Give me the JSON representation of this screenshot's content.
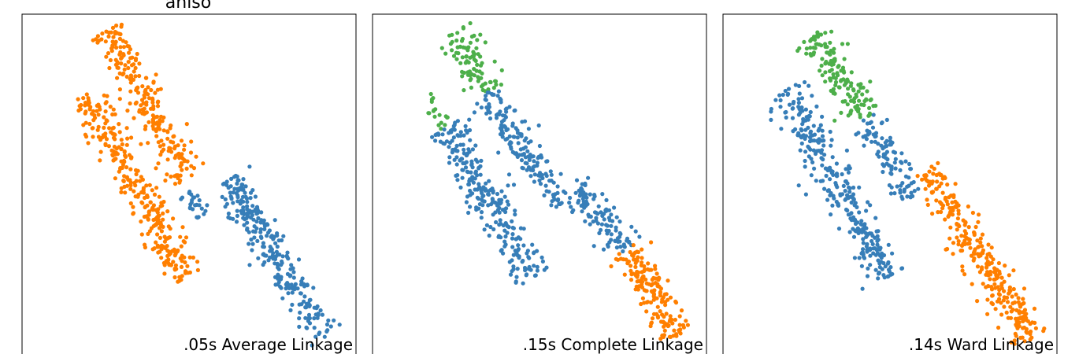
{
  "figure": {
    "row_label": "aniso"
  },
  "colors": {
    "blue": "#377eb8",
    "orange": "#ff7f00",
    "green": "#4daf4a"
  },
  "chart_data": [
    {
      "type": "scatter",
      "annotation": ".05s Average Linkage",
      "grid": false,
      "ticks": false,
      "xlim": [
        0,
        100
      ],
      "ylim": [
        0,
        100
      ],
      "clusters": [
        {
          "color": "orange",
          "segments": [
            {
              "from": [
                25,
                95
              ],
              "to": [
                50,
                53
              ],
              "spread": 2.6,
              "count": 230
            },
            {
              "from": [
                19,
                78
              ],
              "to": [
                49,
                24
              ],
              "spread": 2.8,
              "count": 300
            }
          ]
        },
        {
          "color": "blue",
          "segments": [
            {
              "from": [
                48,
                49
              ],
              "to": [
                56,
                43
              ],
              "spread": 1.7,
              "count": 25
            },
            {
              "from": [
                62,
                52
              ],
              "to": [
                91,
                7
              ],
              "spread": 2.7,
              "count": 280
            }
          ]
        }
      ]
    },
    {
      "type": "scatter",
      "annotation": ".15s Complete Linkage",
      "grid": false,
      "ticks": false,
      "xlim": [
        0,
        100
      ],
      "ylim": [
        0,
        100
      ],
      "clusters": [
        {
          "color": "green",
          "segments": [
            {
              "from": [
                25,
                95
              ],
              "to": [
                35,
                77
              ],
              "spread": 2.6,
              "count": 90
            },
            {
              "from": [
                16,
                76
              ],
              "to": [
                22,
                68
              ],
              "spread": 1.6,
              "count": 18
            }
          ]
        },
        {
          "color": "blue",
          "segments": [
            {
              "from": [
                34,
                77
              ],
              "to": [
                56,
                45
              ],
              "spread": 2.6,
              "count": 160
            },
            {
              "from": [
                22,
                67
              ],
              "to": [
                48,
                24
              ],
              "spread": 2.8,
              "count": 260
            },
            {
              "from": [
                60,
                51
              ],
              "to": [
                76,
                32
              ],
              "spread": 2.4,
              "count": 110
            }
          ]
        },
        {
          "color": "orange",
          "segments": [
            {
              "from": [
                76,
                32
              ],
              "to": [
                91,
                7
              ],
              "spread": 2.6,
              "count": 170
            }
          ]
        }
      ]
    },
    {
      "type": "scatter",
      "annotation": ".14s Ward Linkage",
      "grid": false,
      "ticks": false,
      "xlim": [
        0,
        100
      ],
      "ylim": [
        0,
        100
      ],
      "clusters": [
        {
          "color": "green",
          "segments": [
            {
              "from": [
                26,
                94
              ],
              "to": [
                43,
                70
              ],
              "spread": 2.6,
              "count": 150
            }
          ]
        },
        {
          "color": "blue",
          "segments": [
            {
              "from": [
                43,
                70
              ],
              "to": [
                56,
                47
              ],
              "spread": 2.4,
              "count": 100
            },
            {
              "from": [
                19,
                78
              ],
              "to": [
                49,
                24
              ],
              "spread": 2.8,
              "count": 300
            }
          ]
        },
        {
          "color": "orange",
          "segments": [
            {
              "from": [
                61,
                55
              ],
              "to": [
                92,
                6
              ],
              "spread": 2.6,
              "count": 300
            }
          ]
        }
      ]
    }
  ]
}
